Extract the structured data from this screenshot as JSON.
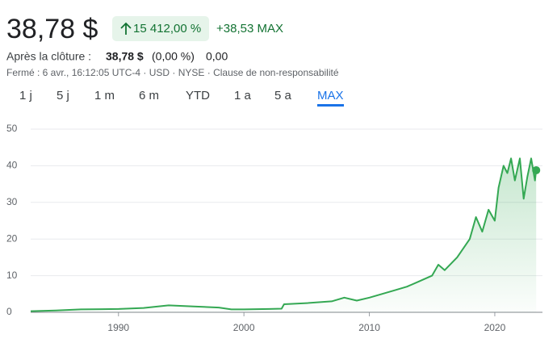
{
  "header": {
    "price": "38,78 $",
    "change_percent": "15 412,00 %",
    "change_abs": "+38,53 MAX",
    "after_hours_label": "Après la clôture :",
    "after_hours_price": "38,78 $",
    "after_hours_percent": "(0,00 %)",
    "after_hours_change": "0,00",
    "info": "Fermé : 6 avr., 16:12:05 UTC-4 · USD · NYSE · Clause de non-responsabilité"
  },
  "tabs": [
    "1 j",
    "5 j",
    "1 m",
    "6 m",
    "YTD",
    "1 a",
    "5 a",
    "MAX"
  ],
  "chart_data": {
    "type": "line",
    "color": "#34a853",
    "x": [
      1983,
      1985,
      1987,
      1990,
      1992,
      1994,
      1996,
      1998,
      1999,
      2000,
      2002,
      2003,
      2003.2,
      2005,
      2007,
      2008,
      2009,
      2010,
      2011,
      2012,
      2013,
      2014,
      2015,
      2015.5,
      2016,
      2017,
      2018,
      2018.5,
      2019,
      2019.5,
      2020,
      2020.3,
      2020.7,
      2021,
      2021.3,
      2021.6,
      2022,
      2022.3,
      2022.6,
      2022.9,
      2023.2,
      2023.3
    ],
    "values": [
      0.3,
      0.5,
      0.8,
      0.9,
      1.2,
      1.9,
      1.6,
      1.3,
      0.8,
      0.8,
      0.9,
      1.0,
      2.2,
      2.5,
      3.0,
      4.0,
      3.2,
      4.0,
      5.0,
      6.0,
      7.0,
      8.5,
      10,
      13,
      11.5,
      15,
      20,
      26,
      22,
      28,
      25,
      34,
      40,
      38,
      42,
      36,
      42,
      31,
      37,
      42,
      36,
      38.78
    ],
    "xlim": [
      1983,
      2023.35
    ],
    "xticks": [
      1990,
      2000,
      2010,
      2020
    ],
    "ylim": [
      0,
      50
    ],
    "yticks": [
      0,
      10,
      20,
      30,
      40,
      50
    ],
    "grid": true
  }
}
